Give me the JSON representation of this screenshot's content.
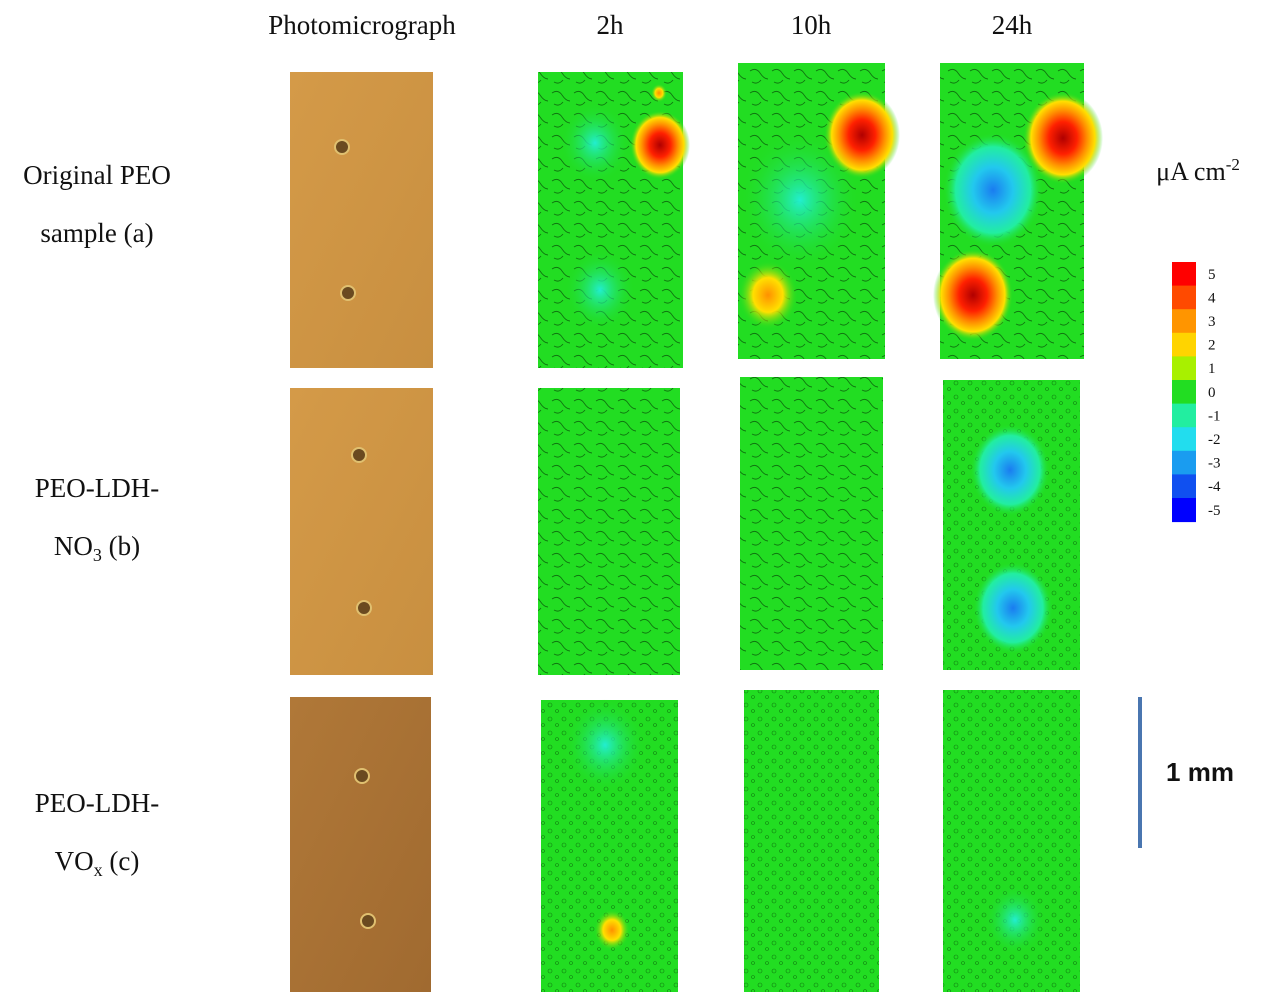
{
  "column_headers": [
    "Photomicrograph",
    "2h",
    "10h",
    "24h"
  ],
  "rows": [
    {
      "line1": "Original PEO",
      "line2": {
        "base": "sample (a)",
        "sub": "",
        "rest": ""
      }
    },
    {
      "line1": "PEO-LDH-",
      "line2": {
        "base": "NO",
        "sub": "3",
        "rest": " (b)"
      }
    },
    {
      "line1": "PEO-LDH-",
      "line2": {
        "base": "VO",
        "sub": "x",
        "rest": " (c)"
      }
    }
  ],
  "unit": {
    "base": "μA cm",
    "sup": "-2"
  },
  "colorbar": {
    "ticks": [
      5,
      4,
      3,
      2,
      1,
      0,
      -1,
      -2,
      -3,
      -4,
      -5
    ],
    "colors": [
      "#ff0000",
      "#ff4a00",
      "#ff9500",
      "#ffd400",
      "#a8f000",
      "#22dd22",
      "#22eea0",
      "#22ddee",
      "#1a9cf0",
      "#1050f0",
      "#0000ff"
    ]
  },
  "scale_bar": "1 mm"
}
